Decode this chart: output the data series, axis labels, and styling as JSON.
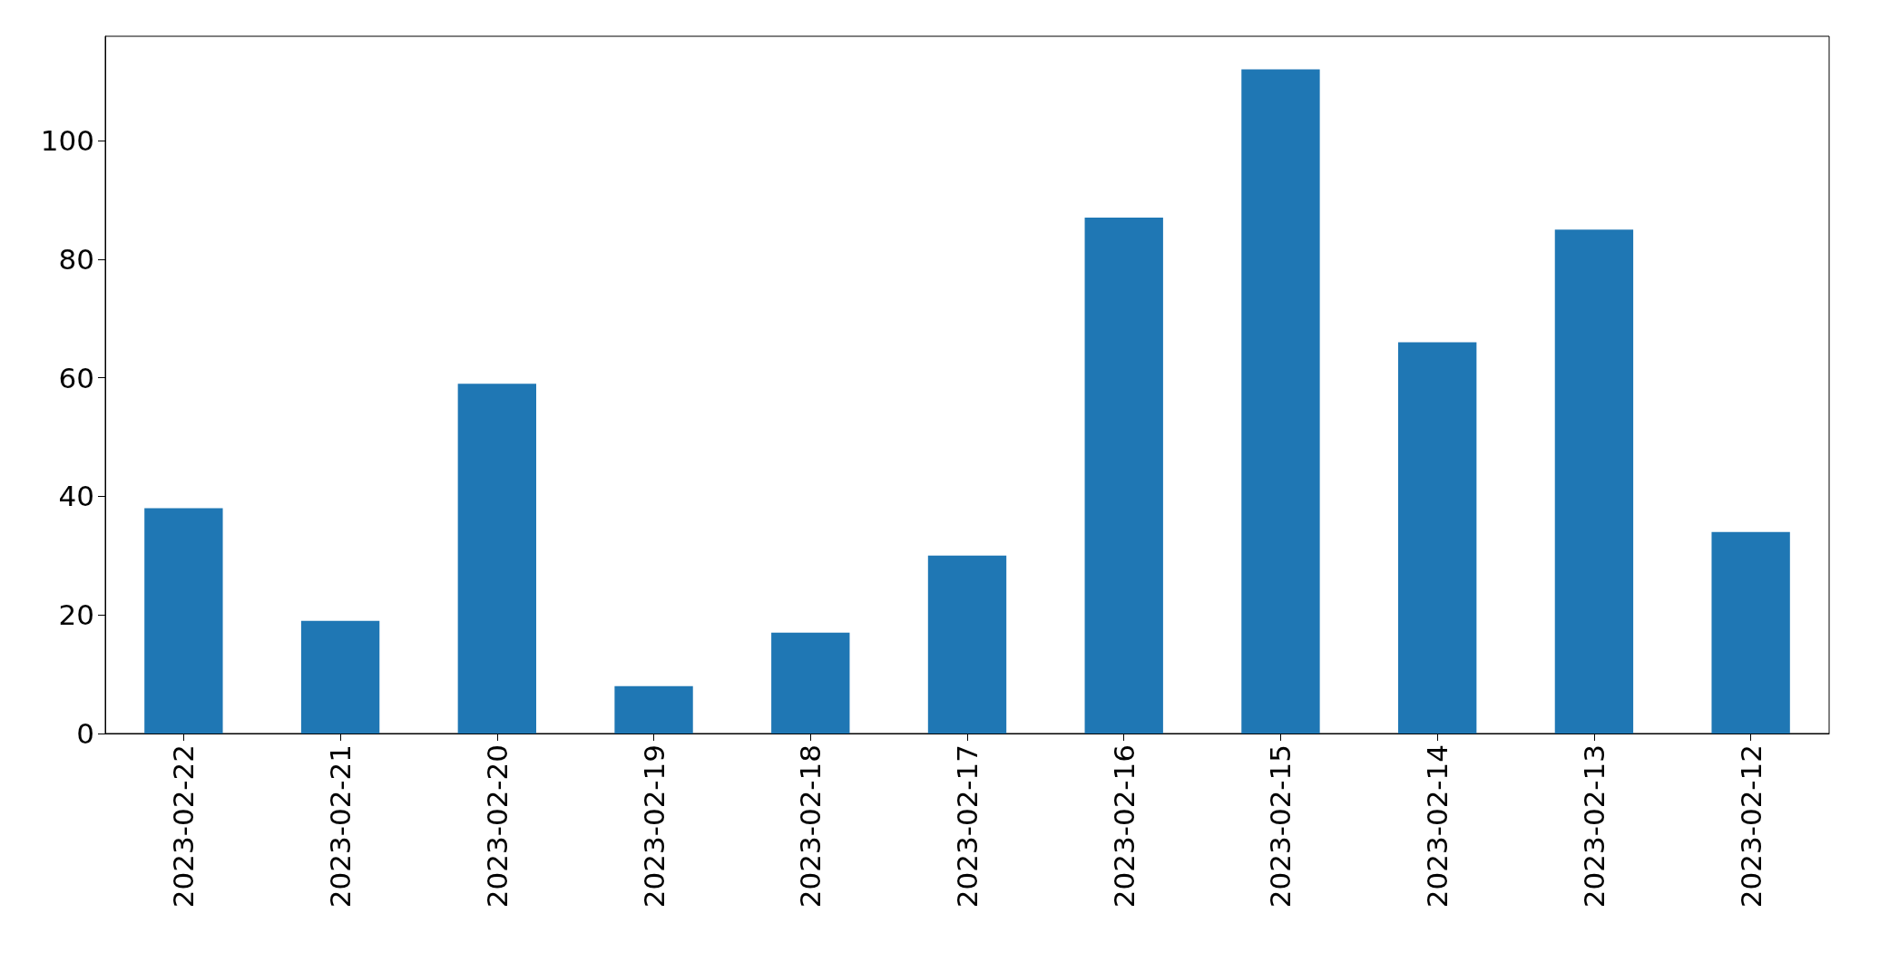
{
  "chart_data": {
    "type": "bar",
    "categories": [
      "2023-02-22",
      "2023-02-21",
      "2023-02-20",
      "2023-02-19",
      "2023-02-18",
      "2023-02-17",
      "2023-02-16",
      "2023-02-15",
      "2023-02-14",
      "2023-02-13",
      "2023-02-12"
    ],
    "values": [
      38,
      19,
      59,
      8,
      17,
      30,
      87,
      112,
      66,
      85,
      34
    ],
    "color": "#1f77b4",
    "ylim": [
      0,
      117.6
    ],
    "yticks": [
      0,
      20,
      40,
      60,
      80,
      100
    ]
  }
}
